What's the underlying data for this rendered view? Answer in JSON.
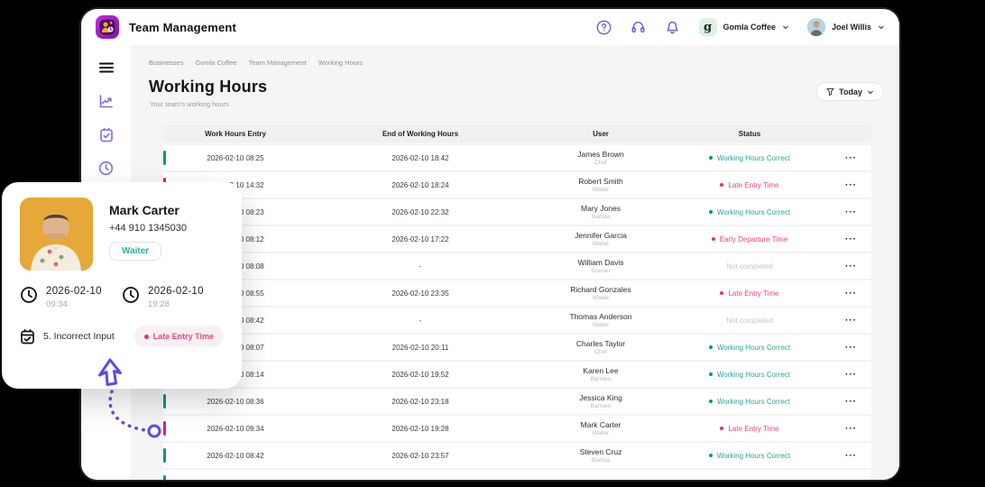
{
  "app": {
    "title": "Team Management"
  },
  "header": {
    "icons": [
      "help-icon",
      "support-icon",
      "notifications-icon"
    ],
    "business": {
      "name": "Gomla Coffee",
      "logo_letter": "g"
    },
    "user": {
      "name": "Joel Willis"
    }
  },
  "sidebar": {
    "icons": [
      "menu-icon",
      "analytics-icon",
      "tasks-icon",
      "working-hours-icon"
    ]
  },
  "breadcrumb": [
    "Businesses",
    "Gomla Coffee",
    "Team Management",
    "Working Hours"
  ],
  "page": {
    "title": "Working Hours",
    "subtitle": "Your team's working hours",
    "filter_button": {
      "label": "Today",
      "icon": "filter-icon"
    }
  },
  "table": {
    "columns": [
      "Work Hours Entry",
      "End of Working Hours",
      "User",
      "Status"
    ],
    "row_menu": "···",
    "rows": [
      {
        "entry": "2026-02-10 08:25",
        "end": "2026-02-10 18:42",
        "user": "James Brown",
        "role": "Chef",
        "status": "Working Hours Correct",
        "type": "ok"
      },
      {
        "entry": "2026-02-10 14:32",
        "end": "2026-02-10 18:24",
        "user": "Robert Smith",
        "role": "Waiter",
        "status": "Late Entry Time",
        "type": "late"
      },
      {
        "entry": "2026-02-10 08:23",
        "end": "2026-02-10 22:32",
        "user": "Mary Jones",
        "role": "Barista",
        "status": "Working Hours Correct",
        "type": "ok"
      },
      {
        "entry": "2026-02-10 08:12",
        "end": "2026-02-10 17:22",
        "user": "Jennifer Garcia",
        "role": "Waiter",
        "status": "Early Departure Time",
        "type": "early"
      },
      {
        "entry": "2026-02-10 08:08",
        "end": "-",
        "user": "William Davis",
        "role": "Courier",
        "status": "Not completed",
        "type": "none"
      },
      {
        "entry": "2026-02-10 08:55",
        "end": "2026-02-10 23:35",
        "user": "Richard Gonzales",
        "role": "Waiter",
        "status": "Late Entry Time",
        "type": "late"
      },
      {
        "entry": "2026-02-10 08:42",
        "end": "-",
        "user": "Thomas Anderson",
        "role": "Waiter",
        "status": "Not completed",
        "type": "none"
      },
      {
        "entry": "2026-02-10 08:07",
        "end": "2026-02-10 20:11",
        "user": "Charles Taylor",
        "role": "Chef",
        "status": "Working Hours Correct",
        "type": "ok"
      },
      {
        "entry": "2026-02-10 08:14",
        "end": "2026-02-10 19:52",
        "user": "Karen Lee",
        "role": "Barmen",
        "status": "Working Hours Correct",
        "type": "ok"
      },
      {
        "entry": "2026-02-10 08:36",
        "end": "2026-02-10 23:18",
        "user": "Jessica King",
        "role": "Barmen",
        "status": "Working Hours Correct",
        "type": "ok"
      },
      {
        "entry": "2026-02-10 09:34",
        "end": "2026-02-10 19:28",
        "user": "Mark Carter",
        "role": "Waiter",
        "status": "Late Entry Time",
        "type": "late"
      },
      {
        "entry": "2026-02-10 08:42",
        "end": "2026-02-10 23:57",
        "user": "Steven Cruz",
        "role": "Barista",
        "status": "Working Hours Correct",
        "type": "ok"
      },
      {
        "entry": "",
        "end": "",
        "user": "",
        "role": "",
        "status": "",
        "type": "ok"
      }
    ]
  },
  "popup": {
    "name": "Mark Carter",
    "phone": "+44 910 1345030",
    "role_badge": "Waiter",
    "entry_date": "2026-02-10",
    "entry_time": "09:34",
    "end_date": "2026-02-10",
    "end_time": "19:28",
    "note": "5. Incorrect Input",
    "status_badge": "Late Entry Time"
  },
  "colors": {
    "teal_text": "#28a794",
    "teal_bar": "#0e9384",
    "pink_text": "#f2417f",
    "pink_bar": "#d22a6b",
    "pink_dot": "#e23072",
    "gray_status": "#c6c6ca",
    "purple_icons": "#6c5ce7",
    "connector_purple": "#5b4be8",
    "window_bg": "#ffffff",
    "content_bg": "#f5f5f6",
    "outer_bg": "#000000"
  }
}
